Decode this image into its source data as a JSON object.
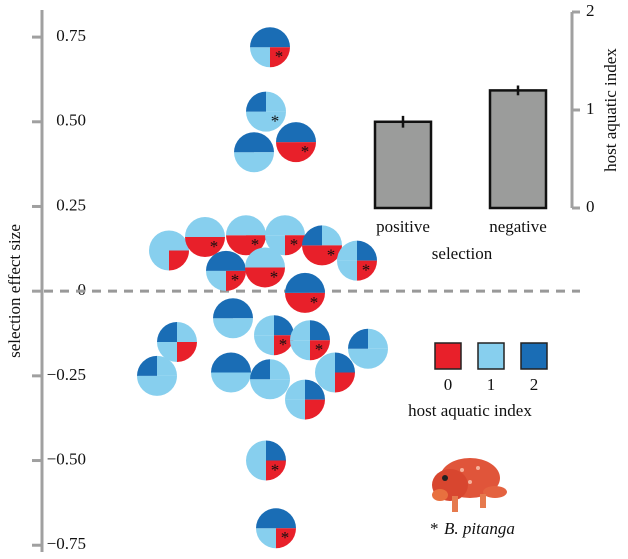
{
  "chart_data": [
    {
      "type": "pie-swarm",
      "ylabel": "selection effect size",
      "ylim": [
        -0.77,
        0.83
      ],
      "yticks": [
        {
          "value": -0.75,
          "label": "−0.75"
        },
        {
          "value": -0.5,
          "label": "−0.50"
        },
        {
          "value": -0.25,
          "label": "−0.25"
        },
        0,
        0.25,
        {
          "value": 0.5,
          "label": "0.50"
        },
        0.75
      ],
      "reference_line": 0,
      "levels": [
        0,
        1,
        2
      ],
      "colors": [
        "#e8202a",
        "#87cfee",
        "#1a6db5"
      ],
      "legend": {
        "title": "host aquatic index"
      },
      "footnote": {
        "symbol": "*",
        "species": "B. pitanga"
      },
      "points": [
        {
          "value": 0.72,
          "quarters": [
            2,
            0,
            1,
            2
          ],
          "marker": "*"
        },
        {
          "value": 0.53,
          "quarters": [
            1,
            1,
            1,
            2
          ],
          "marker": "*"
        },
        {
          "value": 0.44,
          "quarters": [
            2,
            0,
            0,
            2
          ],
          "marker": "*"
        },
        {
          "value": 0.41,
          "quarters": [
            2,
            1,
            1,
            2
          ]
        },
        {
          "value": 0.12,
          "quarters": [
            1,
            0,
            1,
            1
          ]
        },
        {
          "value": 0.16,
          "quarters": [
            1,
            0,
            0,
            1
          ],
          "marker": "*"
        },
        {
          "value": 0.165,
          "quarters": [
            1,
            0,
            0,
            1
          ],
          "marker": "*"
        },
        {
          "value": 0.165,
          "quarters": [
            1,
            0,
            1,
            1
          ],
          "marker": "*"
        },
        {
          "value": 0.135,
          "quarters": [
            1,
            0,
            0,
            2
          ],
          "marker": "*"
        },
        {
          "value": 0.09,
          "quarters": [
            2,
            0,
            1,
            1
          ],
          "marker": "*"
        },
        {
          "value": 0.06,
          "quarters": [
            2,
            0,
            1,
            2
          ],
          "marker": "*"
        },
        {
          "value": 0.07,
          "quarters": [
            1,
            0,
            0,
            1
          ],
          "marker": "*"
        },
        {
          "value": -0.005,
          "quarters": [
            2,
            0,
            0,
            2
          ],
          "marker": "*"
        },
        {
          "value": -0.08,
          "quarters": [
            2,
            1,
            1,
            2
          ]
        },
        {
          "value": -0.15,
          "quarters": [
            1,
            0,
            1,
            2
          ]
        },
        {
          "value": -0.13,
          "quarters": [
            2,
            0,
            1,
            1
          ],
          "marker": "*"
        },
        {
          "value": -0.145,
          "quarters": [
            2,
            0,
            1,
            1
          ],
          "marker": "*"
        },
        {
          "value": -0.17,
          "quarters": [
            1,
            1,
            1,
            2
          ]
        },
        {
          "value": -0.25,
          "quarters": [
            1,
            1,
            1,
            2
          ]
        },
        {
          "value": -0.24,
          "quarters": [
            2,
            1,
            1,
            2
          ]
        },
        {
          "value": -0.26,
          "quarters": [
            1,
            1,
            1,
            2
          ]
        },
        {
          "value": -0.24,
          "quarters": [
            2,
            0,
            1,
            1
          ]
        },
        {
          "value": -0.32,
          "quarters": [
            2,
            0,
            1,
            1
          ]
        },
        {
          "value": -0.5,
          "quarters": [
            2,
            0,
            1,
            1
          ],
          "marker": "*"
        },
        {
          "value": -0.7,
          "quarters": [
            2,
            0,
            1,
            2
          ],
          "marker": "*"
        }
      ]
    },
    {
      "type": "bar",
      "categories": [
        "positive",
        "negative"
      ],
      "xlabel": "selection",
      "values": [
        0.88,
        1.2
      ],
      "errors": [
        0.06,
        0.05
      ],
      "color": "#9b9c9b",
      "ylabel": "host aquatic index",
      "y2lim": [
        0,
        2
      ],
      "y2ticks": [
        0,
        1,
        2
      ]
    }
  ]
}
